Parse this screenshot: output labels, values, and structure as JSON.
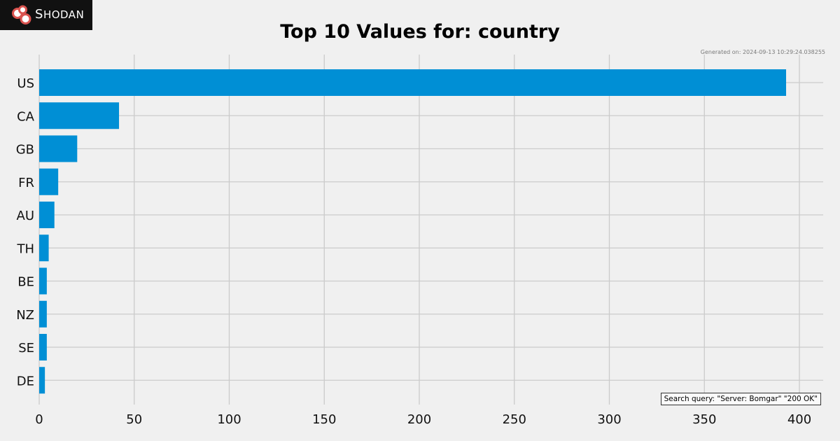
{
  "brand": {
    "name": "Shodan",
    "colors": {
      "bar": "#008fd5",
      "background": "#f0f0f0",
      "grid": "#cbcbcb"
    }
  },
  "header": {
    "title": "Top 10 Values for: country",
    "generated": "Generated on: 2024-09-13 10:29:24.038255"
  },
  "query": {
    "label": "Search query: \"Server: Bomgar\" \"200 OK\""
  },
  "chart_data": {
    "type": "bar",
    "orientation": "horizontal",
    "title": "Top 10 Values for: country",
    "xlabel": "",
    "ylabel": "",
    "categories": [
      "US",
      "CA",
      "GB",
      "FR",
      "AU",
      "TH",
      "BE",
      "NZ",
      "SE",
      "DE"
    ],
    "values": [
      393,
      42,
      20,
      10,
      8,
      5,
      4,
      4,
      4,
      3
    ],
    "xlim": [
      0,
      412
    ],
    "xticks": [
      0,
      50,
      100,
      150,
      200,
      250,
      300,
      350,
      400
    ],
    "grid": true,
    "legend": "none"
  }
}
